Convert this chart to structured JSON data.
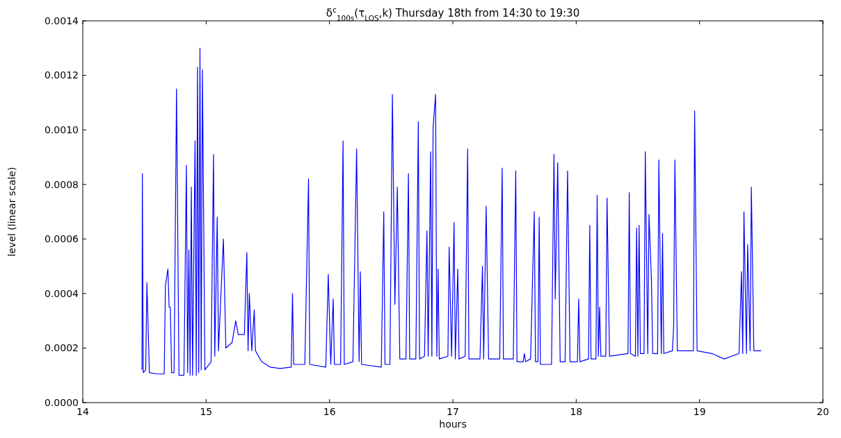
{
  "chart_data": {
    "type": "line",
    "title": "δ$^{c}$$_{100s}$(τ$_{LOS}$,k) Thursday 18th from 14:30 to 19:30",
    "xlabel": "hours",
    "ylabel": "level (linear scale)",
    "xlim": [
      14,
      20
    ],
    "xticks": [
      14,
      15,
      16,
      17,
      18,
      19,
      20
    ],
    "ylim": [
      0,
      0.0014
    ],
    "yticks": [
      {
        "value": 0,
        "label": "0.0000"
      },
      {
        "value": 0.0002,
        "label": "0.0002"
      },
      {
        "value": 0.0004,
        "label": "0.0004"
      },
      {
        "value": 0.0006,
        "label": "0.0006"
      },
      {
        "value": 0.0008,
        "label": "0.0008"
      },
      {
        "value": 0.001,
        "label": "0.0010"
      },
      {
        "value": 0.0012,
        "label": "0.0012"
      },
      {
        "value": 0.0014,
        "label": "0.0014"
      }
    ],
    "grid": false,
    "marker": "none",
    "line_style": "solid",
    "series": [
      {
        "color": "#0000ff",
        "x": [
          14.48,
          14.483,
          14.49,
          14.51,
          14.52,
          14.54,
          14.6,
          14.66,
          14.67,
          14.69,
          14.7,
          14.71,
          14.72,
          14.74,
          14.75,
          14.76,
          14.78,
          14.82,
          14.84,
          14.85,
          14.86,
          14.87,
          14.88,
          14.89,
          14.91,
          14.92,
          14.93,
          14.94,
          14.95,
          14.96,
          14.97,
          14.99,
          15.04,
          15.06,
          15.07,
          15.09,
          15.1,
          15.14,
          15.16,
          15.21,
          15.24,
          15.26,
          15.31,
          15.33,
          15.34,
          15.35,
          15.37,
          15.39,
          15.4,
          15.45,
          15.52,
          15.6,
          15.69,
          15.7,
          15.71,
          15.8,
          15.83,
          15.84,
          15.97,
          15.99,
          16.01,
          16.03,
          16.04,
          16.09,
          16.11,
          16.12,
          16.19,
          16.22,
          16.24,
          16.25,
          16.26,
          16.42,
          16.44,
          16.45,
          16.49,
          16.51,
          16.53,
          16.55,
          16.57,
          16.62,
          16.64,
          16.65,
          16.7,
          16.72,
          16.73,
          16.77,
          16.79,
          16.8,
          16.82,
          16.83,
          16.84,
          16.86,
          16.87,
          16.88,
          16.89,
          16.96,
          16.97,
          16.99,
          17.01,
          17.02,
          17.04,
          17.05,
          17.1,
          17.12,
          17.13,
          17.22,
          17.24,
          17.25,
          17.27,
          17.29,
          17.38,
          17.4,
          17.41,
          17.49,
          17.51,
          17.52,
          17.57,
          17.58,
          17.59,
          17.63,
          17.66,
          17.67,
          17.69,
          17.7,
          17.71,
          17.8,
          17.82,
          17.83,
          17.85,
          17.87,
          17.91,
          17.93,
          17.95,
          18.01,
          18.02,
          18.03,
          18.1,
          18.11,
          18.12,
          18.16,
          18.17,
          18.18,
          18.19,
          18.2,
          18.24,
          18.25,
          18.27,
          18.42,
          18.43,
          18.44,
          18.48,
          18.49,
          18.5,
          18.51,
          18.52,
          18.55,
          18.56,
          18.58,
          18.59,
          18.61,
          18.62,
          18.66,
          18.67,
          18.69,
          18.7,
          18.71,
          18.78,
          18.79,
          18.8,
          18.82,
          18.95,
          18.96,
          18.98,
          19.1,
          19.2,
          19.32,
          19.34,
          19.35,
          19.36,
          19.38,
          19.39,
          19.41,
          19.42,
          19.44,
          19.5
        ],
        "values": [
          0.00012,
          0.00084,
          0.00011,
          0.00012,
          0.00044,
          0.00011,
          0.000105,
          0.000105,
          0.00043,
          0.00049,
          0.00035,
          0.00035,
          0.00011,
          0.00011,
          0.00063,
          0.00115,
          0.0001,
          0.0001,
          0.00087,
          0.00011,
          0.00056,
          0.0001,
          0.00079,
          0.0001,
          0.00096,
          0.0001,
          0.00123,
          0.00011,
          0.0013,
          0.00012,
          0.00122,
          0.00012,
          0.00015,
          0.00091,
          0.00017,
          0.00068,
          0.00019,
          0.0006,
          0.0002,
          0.00022,
          0.0003,
          0.00025,
          0.00025,
          0.00055,
          0.00019,
          0.0004,
          0.00019,
          0.00034,
          0.00019,
          0.00015,
          0.00013,
          0.000125,
          0.00013,
          0.0004,
          0.00014,
          0.00014,
          0.00082,
          0.00014,
          0.00013,
          0.00047,
          0.00014,
          0.00038,
          0.00014,
          0.00014,
          0.00096,
          0.00014,
          0.00015,
          0.00093,
          0.00015,
          0.00048,
          0.00014,
          0.00013,
          0.0007,
          0.00014,
          0.00014,
          0.00113,
          0.00036,
          0.00079,
          0.00016,
          0.00016,
          0.00084,
          0.00016,
          0.00016,
          0.00103,
          0.00016,
          0.00017,
          0.00063,
          0.00017,
          0.00092,
          0.00017,
          0.00101,
          0.00113,
          0.00017,
          0.00049,
          0.00016,
          0.00017,
          0.00057,
          0.00017,
          0.00066,
          0.00016,
          0.00049,
          0.00016,
          0.00017,
          0.00093,
          0.00016,
          0.00016,
          0.0005,
          0.00016,
          0.00072,
          0.00016,
          0.00016,
          0.00086,
          0.00016,
          0.00016,
          0.00085,
          0.00015,
          0.00015,
          0.00018,
          0.00015,
          0.00016,
          0.0007,
          0.00015,
          0.00015,
          0.00068,
          0.00014,
          0.00014,
          0.00091,
          0.00038,
          0.00088,
          0.00015,
          0.00015,
          0.00085,
          0.00015,
          0.00015,
          0.00038,
          0.00015,
          0.00016,
          0.00065,
          0.00016,
          0.00016,
          0.00076,
          0.00017,
          0.00035,
          0.00017,
          0.00017,
          0.00075,
          0.00017,
          0.00018,
          0.00077,
          0.00018,
          0.00017,
          0.00064,
          0.00017,
          0.00065,
          0.00018,
          0.00018,
          0.00092,
          0.00018,
          0.00069,
          0.00045,
          0.00018,
          0.00018,
          0.00089,
          0.00018,
          0.00062,
          0.00018,
          0.00019,
          0.00028,
          0.00089,
          0.00019,
          0.00019,
          0.00107,
          0.00019,
          0.00018,
          0.00016,
          0.00018,
          0.00048,
          0.00018,
          0.0007,
          0.00018,
          0.00058,
          0.00019,
          0.00079,
          0.00019,
          0.00019
        ]
      }
    ]
  }
}
